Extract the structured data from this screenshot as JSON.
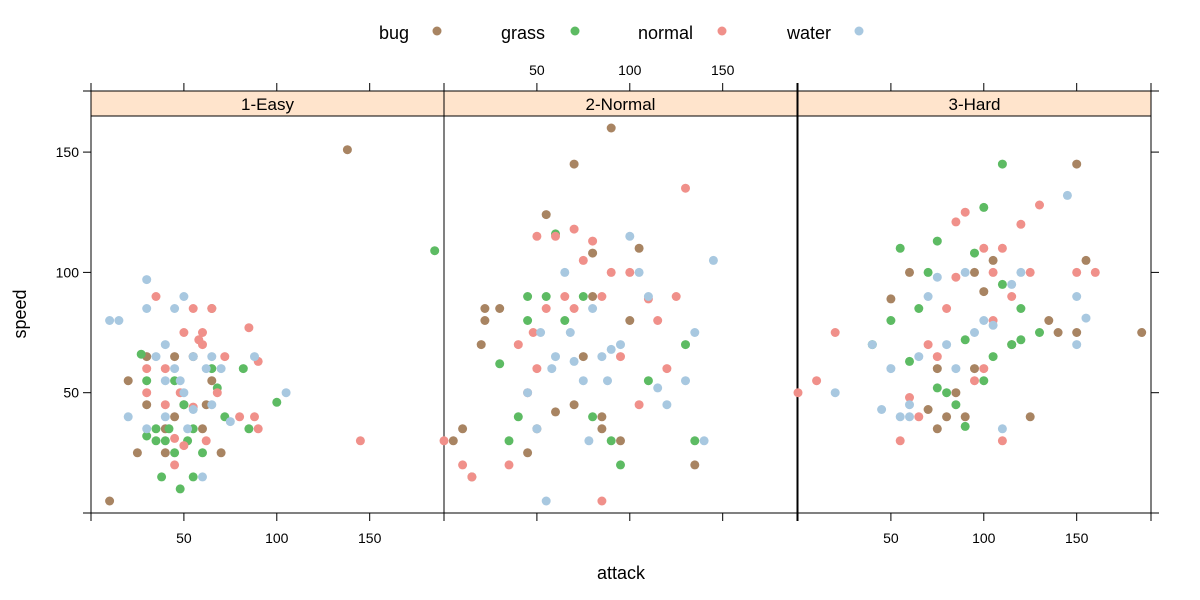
{
  "chart_data": {
    "type": "scatter",
    "xlabel": "attack",
    "ylabel": "speed",
    "xlim": [
      0,
      190
    ],
    "ylim": [
      0,
      165
    ],
    "x_ticks": [
      50,
      100,
      150
    ],
    "y_ticks": [
      50,
      100,
      150
    ],
    "legend_position": "top",
    "panels": [
      "1-Easy",
      "2-Normal",
      "3-Hard"
    ],
    "colors": {
      "bug": "#a88462",
      "grass": "#5dbb63",
      "normal": "#f0908a",
      "water": "#a8c8e0",
      "strip": "#ffe4cc"
    },
    "series": [
      {
        "name": "bug",
        "points": {
          "1-Easy": [
            [
              10,
              5
            ],
            [
              20,
              55
            ],
            [
              25,
              25
            ],
            [
              30,
              65
            ],
            [
              30,
              45
            ],
            [
              40,
              35
            ],
            [
              40,
              25
            ],
            [
              45,
              40
            ],
            [
              45,
              65
            ],
            [
              50,
              45
            ],
            [
              55,
              65
            ],
            [
              60,
              35
            ],
            [
              62,
              45
            ],
            [
              65,
              55
            ],
            [
              65,
              85
            ],
            [
              70,
              25
            ],
            [
              138,
              151
            ]
          ],
          "2-Normal": [
            [
              5,
              30
            ],
            [
              10,
              35
            ],
            [
              15,
              15
            ],
            [
              20,
              70
            ],
            [
              22,
              85
            ],
            [
              22,
              80
            ],
            [
              30,
              85
            ],
            [
              45,
              25
            ],
            [
              50,
              35
            ],
            [
              55,
              124
            ],
            [
              60,
              42
            ],
            [
              70,
              145
            ],
            [
              70,
              45
            ],
            [
              75,
              65
            ],
            [
              80,
              108
            ],
            [
              80,
              90
            ],
            [
              85,
              40
            ],
            [
              85,
              35
            ],
            [
              90,
              160
            ],
            [
              95,
              30
            ],
            [
              100,
              80
            ],
            [
              105,
              110
            ],
            [
              135,
              20
            ]
          ],
          "3-Hard": [
            [
              50,
              89
            ],
            [
              60,
              100
            ],
            [
              70,
              43
            ],
            [
              75,
              60
            ],
            [
              75,
              35
            ],
            [
              80,
              40
            ],
            [
              85,
              50
            ],
            [
              90,
              40
            ],
            [
              95,
              100
            ],
            [
              95,
              60
            ],
            [
              100,
              92
            ],
            [
              105,
              105
            ],
            [
              115,
              70
            ],
            [
              125,
              40
            ],
            [
              135,
              80
            ],
            [
              140,
              75
            ],
            [
              150,
              145
            ],
            [
              150,
              75
            ],
            [
              155,
              105
            ],
            [
              185,
              75
            ]
          ]
        }
      },
      {
        "name": "grass",
        "points": {
          "1-Easy": [
            [
              27,
              66
            ],
            [
              30,
              55
            ],
            [
              30,
              32
            ],
            [
              35,
              35
            ],
            [
              35,
              30
            ],
            [
              38,
              15
            ],
            [
              40,
              30
            ],
            [
              42,
              35
            ],
            [
              45,
              25
            ],
            [
              45,
              55
            ],
            [
              48,
              10
            ],
            [
              50,
              45
            ],
            [
              52,
              30
            ],
            [
              55,
              35
            ],
            [
              55,
              15
            ],
            [
              60,
              25
            ],
            [
              65,
              60
            ],
            [
              68,
              52
            ],
            [
              72,
              40
            ],
            [
              82,
              60
            ],
            [
              85,
              35
            ],
            [
              100,
              46
            ],
            [
              185,
              109
            ]
          ],
          "2-Normal": [
            [
              30,
              62
            ],
            [
              35,
              30
            ],
            [
              40,
              40
            ],
            [
              45,
              90
            ],
            [
              45,
              80
            ],
            [
              55,
              90
            ],
            [
              60,
              116
            ],
            [
              65,
              80
            ],
            [
              75,
              90
            ],
            [
              80,
              40
            ],
            [
              90,
              30
            ],
            [
              95,
              20
            ],
            [
              110,
              55
            ],
            [
              130,
              70
            ],
            [
              135,
              30
            ]
          ],
          "3-Hard": [
            [
              40,
              70
            ],
            [
              50,
              80
            ],
            [
              55,
              110
            ],
            [
              60,
              63
            ],
            [
              65,
              85
            ],
            [
              70,
              100
            ],
            [
              75,
              113
            ],
            [
              75,
              52
            ],
            [
              80,
              50
            ],
            [
              85,
              45
            ],
            [
              90,
              72
            ],
            [
              90,
              36
            ],
            [
              95,
              108
            ],
            [
              100,
              127
            ],
            [
              100,
              55
            ],
            [
              105,
              65
            ],
            [
              110,
              145
            ],
            [
              110,
              95
            ],
            [
              115,
              70
            ],
            [
              120,
              85
            ],
            [
              120,
              72
            ],
            [
              130,
              75
            ]
          ]
        }
      },
      {
        "name": "normal",
        "points": {
          "1-Easy": [
            [
              30,
              60
            ],
            [
              30,
              50
            ],
            [
              35,
              90
            ],
            [
              40,
              60
            ],
            [
              40,
              45
            ],
            [
              45,
              20
            ],
            [
              45,
              31
            ],
            [
              48,
              50
            ],
            [
              50,
              75
            ],
            [
              50,
              28
            ],
            [
              55,
              85
            ],
            [
              55,
              44
            ],
            [
              58,
              72
            ],
            [
              60,
              70
            ],
            [
              60,
              75
            ],
            [
              62,
              30
            ],
            [
              65,
              85
            ],
            [
              68,
              50
            ],
            [
              72,
              65
            ],
            [
              80,
              40
            ],
            [
              85,
              77
            ],
            [
              88,
              40
            ],
            [
              90,
              35
            ],
            [
              90,
              63
            ],
            [
              145,
              30
            ]
          ],
          "2-Normal": [
            [
              0,
              30
            ],
            [
              10,
              20
            ],
            [
              15,
              15
            ],
            [
              35,
              20
            ],
            [
              40,
              70
            ],
            [
              45,
              50
            ],
            [
              48,
              75
            ],
            [
              50,
              115
            ],
            [
              50,
              60
            ],
            [
              55,
              85
            ],
            [
              60,
              115
            ],
            [
              65,
              90
            ],
            [
              70,
              118
            ],
            [
              70,
              85
            ],
            [
              75,
              105
            ],
            [
              80,
              113
            ],
            [
              85,
              90
            ],
            [
              85,
              5
            ],
            [
              90,
              100
            ],
            [
              95,
              65
            ],
            [
              100,
              100
            ],
            [
              105,
              45
            ],
            [
              110,
              89
            ],
            [
              115,
              80
            ],
            [
              120,
              60
            ],
            [
              125,
              90
            ],
            [
              130,
              135
            ]
          ],
          "3-Hard": [
            [
              0,
              50
            ],
            [
              10,
              55
            ],
            [
              20,
              75
            ],
            [
              55,
              30
            ],
            [
              60,
              48
            ],
            [
              65,
              40
            ],
            [
              70,
              70
            ],
            [
              75,
              65
            ],
            [
              80,
              85
            ],
            [
              85,
              121
            ],
            [
              85,
              98
            ],
            [
              90,
              125
            ],
            [
              95,
              55
            ],
            [
              100,
              60
            ],
            [
              100,
              110
            ],
            [
              105,
              100
            ],
            [
              105,
              80
            ],
            [
              110,
              110
            ],
            [
              110,
              30
            ],
            [
              115,
              90
            ],
            [
              120,
              120
            ],
            [
              125,
              100
            ],
            [
              130,
              128
            ],
            [
              150,
              100
            ],
            [
              160,
              100
            ]
          ]
        }
      },
      {
        "name": "water",
        "points": {
          "1-Easy": [
            [
              10,
              80
            ],
            [
              15,
              80
            ],
            [
              20,
              40
            ],
            [
              30,
              97
            ],
            [
              30,
              85
            ],
            [
              30,
              35
            ],
            [
              35,
              65
            ],
            [
              40,
              70
            ],
            [
              40,
              55
            ],
            [
              40,
              40
            ],
            [
              45,
              60
            ],
            [
              45,
              85
            ],
            [
              48,
              55
            ],
            [
              50,
              90
            ],
            [
              50,
              50
            ],
            [
              52,
              35
            ],
            [
              55,
              65
            ],
            [
              55,
              43
            ],
            [
              60,
              15
            ],
            [
              62,
              60
            ],
            [
              65,
              45
            ],
            [
              65,
              65
            ],
            [
              70,
              60
            ],
            [
              75,
              38
            ],
            [
              88,
              65
            ],
            [
              105,
              50
            ]
          ],
          "2-Normal": [
            [
              45,
              50
            ],
            [
              50,
              35
            ],
            [
              52,
              75
            ],
            [
              55,
              5
            ],
            [
              58,
              60
            ],
            [
              60,
              65
            ],
            [
              65,
              100
            ],
            [
              68,
              75
            ],
            [
              70,
              63
            ],
            [
              75,
              55
            ],
            [
              78,
              30
            ],
            [
              80,
              85
            ],
            [
              85,
              65
            ],
            [
              88,
              55
            ],
            [
              90,
              68
            ],
            [
              95,
              70
            ],
            [
              100,
              115
            ],
            [
              105,
              100
            ],
            [
              110,
              90
            ],
            [
              115,
              52
            ],
            [
              120,
              45
            ],
            [
              130,
              55
            ],
            [
              135,
              75
            ],
            [
              140,
              30
            ],
            [
              145,
              105
            ]
          ],
          "3-Hard": [
            [
              20,
              50
            ],
            [
              40,
              70
            ],
            [
              45,
              43
            ],
            [
              50,
              60
            ],
            [
              55,
              40
            ],
            [
              60,
              45
            ],
            [
              60,
              40
            ],
            [
              65,
              65
            ],
            [
              70,
              90
            ],
            [
              75,
              98
            ],
            [
              80,
              70
            ],
            [
              85,
              60
            ],
            [
              90,
              100
            ],
            [
              95,
              75
            ],
            [
              100,
              80
            ],
            [
              105,
              78
            ],
            [
              110,
              35
            ],
            [
              115,
              95
            ],
            [
              120,
              100
            ],
            [
              145,
              132
            ],
            [
              150,
              90
            ],
            [
              150,
              70
            ],
            [
              155,
              81
            ]
          ]
        }
      }
    ]
  }
}
